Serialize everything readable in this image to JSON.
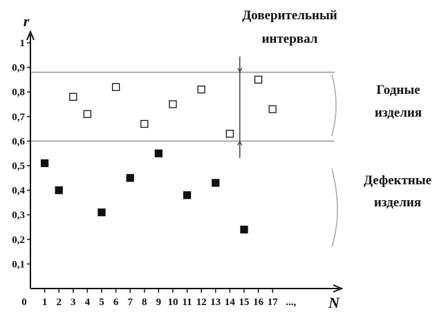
{
  "chart_data": {
    "type": "scatter",
    "title": "",
    "xlabel": "N",
    "ylabel": "r",
    "x_tick_labels": [
      "0",
      "1",
      "2",
      "3",
      "4",
      "5",
      "6",
      "7",
      "8",
      "9",
      "10",
      "11",
      "12",
      "13",
      "14",
      "15",
      "16",
      "17",
      "...,"
    ],
    "y_tick_labels": [
      "0,1",
      "0,2",
      "0,3",
      "0,4",
      "0,5",
      "0,6",
      "0,7",
      "0,8",
      "0,9",
      "1"
    ],
    "ylim": [
      0,
      1
    ],
    "xlim": [
      0,
      19
    ],
    "thresholds": [
      0.6,
      0.88
    ],
    "interval_x": 14.7,
    "grid": false,
    "series": [
      {
        "marker": "hollow-square",
        "x": [
          3,
          4,
          6,
          8,
          10,
          12,
          14,
          16,
          17
        ],
        "y": [
          0.78,
          0.71,
          0.82,
          0.67,
          0.75,
          0.81,
          0.63,
          0.85,
          0.73
        ]
      },
      {
        "marker": "filled-square",
        "x": [
          1,
          2,
          5,
          7,
          9,
          11,
          13,
          15
        ],
        "y": [
          0.51,
          0.4,
          0.31,
          0.45,
          0.55,
          0.38,
          0.43,
          0.24
        ]
      }
    ],
    "annotations": {
      "interval": [
        "Доверительный",
        "интервал"
      ],
      "good": [
        "Годные",
        "изделия"
      ],
      "defective": [
        "Дефектные",
        "изделия"
      ]
    },
    "colors": {
      "axis": "#111111",
      "threshold_line": "#999999",
      "brace": "#aaaaaa",
      "marker": "#111111"
    }
  }
}
